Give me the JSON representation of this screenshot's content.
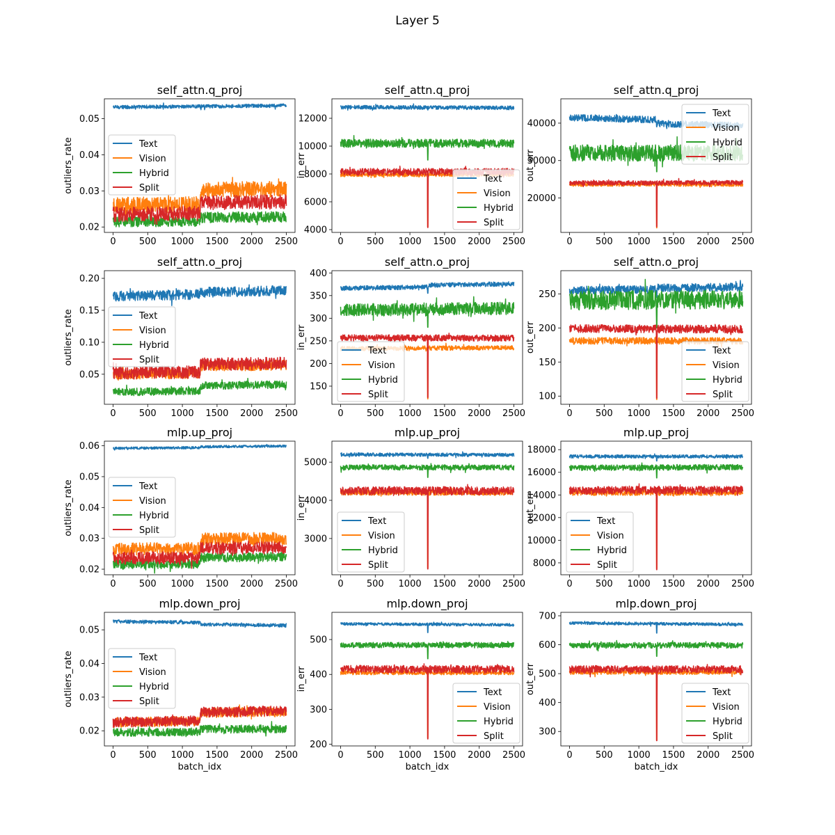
{
  "figure": {
    "title": "Layer 5"
  },
  "colors": {
    "Text": "#1f77b4",
    "Vision": "#ff7f0e",
    "Hybrid": "#2ca02c",
    "Split": "#d62728"
  },
  "chart_data": [
    {
      "type": "line",
      "title": "self_attn.q_proj",
      "xlabel": "",
      "ylabel": "outliers_rate",
      "xlim": [
        -125,
        2625
      ],
      "ylim": [
        0.0185,
        0.0555
      ],
      "xticks": [
        0,
        500,
        1000,
        1500,
        2000,
        2500
      ],
      "yticks": [
        0.02,
        0.03,
        0.04,
        0.05
      ],
      "ytick_labels": [
        "0.02",
        "0.03",
        "0.04",
        "0.05"
      ],
      "legend": "center-left",
      "x": [
        0,
        2500
      ],
      "series": [
        {
          "name": "Text",
          "mean": [
            0.0532,
            0.0536
          ],
          "noise": 0.0005,
          "step": 0
        },
        {
          "name": "Vision",
          "mean": [
            0.026,
            0.0265
          ],
          "noise": 0.0022,
          "step": 0.004
        },
        {
          "name": "Hybrid",
          "mean": [
            0.0215,
            0.0218
          ],
          "noise": 0.0015,
          "step": 0.001
        },
        {
          "name": "Split",
          "mean": [
            0.0235,
            0.024
          ],
          "noise": 0.002,
          "step": 0.003
        }
      ]
    },
    {
      "type": "line",
      "title": "self_attn.q_proj",
      "xlabel": "",
      "ylabel": "in_err",
      "xlim": [
        -125,
        2625
      ],
      "ylim": [
        3800,
        13400
      ],
      "xticks": [
        0,
        500,
        1000,
        1500,
        2000,
        2500
      ],
      "yticks": [
        4000,
        6000,
        8000,
        10000,
        12000
      ],
      "ytick_labels": [
        "4000",
        "6000",
        "8000",
        "10000",
        "12000"
      ],
      "legend": "lower-right",
      "x": [
        0,
        2500
      ],
      "series": [
        {
          "name": "Text",
          "mean": [
            12800,
            12750
          ],
          "noise": 140,
          "step": 0,
          "dip": 12600
        },
        {
          "name": "Vision",
          "mean": [
            7950,
            7950
          ],
          "noise": 150,
          "step": 0,
          "dip": 4200
        },
        {
          "name": "Hybrid",
          "mean": [
            10200,
            10200
          ],
          "noise": 300,
          "step": 0,
          "dip": 9000
        },
        {
          "name": "Split",
          "mean": [
            8150,
            8150
          ],
          "noise": 250,
          "step": 0,
          "dip": 4150
        }
      ]
    },
    {
      "type": "line",
      "title": "self_attn.q_proj",
      "xlabel": "",
      "ylabel": "out_err",
      "xlim": [
        -125,
        2625
      ],
      "ylim": [
        10800,
        46500
      ],
      "xticks": [
        0,
        500,
        1000,
        1500,
        2000,
        2500
      ],
      "yticks": [
        20000,
        30000,
        40000
      ],
      "ytick_labels": [
        "20000",
        "30000",
        "40000"
      ],
      "legend": "upper-right",
      "x": [
        0,
        2500
      ],
      "series": [
        {
          "name": "Text",
          "mean": [
            41500,
            40300
          ],
          "noise": 900,
          "step": -1000,
          "dip": 39000
        },
        {
          "name": "Vision",
          "mean": [
            23600,
            23600
          ],
          "noise": 500,
          "step": 0,
          "dip": 12000
        },
        {
          "name": "Hybrid",
          "mean": [
            32000,
            32000
          ],
          "noise": 2200,
          "step": 0,
          "dip": 27000
        },
        {
          "name": "Split",
          "mean": [
            24000,
            24100
          ],
          "noise": 600,
          "step": 0,
          "dip": 12300
        }
      ]
    },
    {
      "type": "line",
      "title": "self_attn.o_proj",
      "xlabel": "",
      "ylabel": "outliers_rate",
      "xlim": [
        -125,
        2625
      ],
      "ylim": [
        0.003,
        0.212
      ],
      "xticks": [
        0,
        500,
        1000,
        1500,
        2000,
        2500
      ],
      "yticks": [
        0.05,
        0.1,
        0.15,
        0.2
      ],
      "ytick_labels": [
        "0.05",
        "0.10",
        "0.15",
        "0.20"
      ],
      "legend": "center-left",
      "x": [
        0,
        2500
      ],
      "series": [
        {
          "name": "Text",
          "mean": [
            0.172,
            0.178
          ],
          "noise": 0.008,
          "step": 0.003
        },
        {
          "name": "Vision",
          "mean": [
            0.05,
            0.052
          ],
          "noise": 0.008,
          "step": 0.012
        },
        {
          "name": "Hybrid",
          "mean": [
            0.022,
            0.026
          ],
          "noise": 0.006,
          "step": 0.008
        },
        {
          "name": "Split",
          "mean": [
            0.052,
            0.055
          ],
          "noise": 0.01,
          "step": 0.012
        }
      ]
    },
    {
      "type": "line",
      "title": "self_attn.o_proj",
      "xlabel": "",
      "ylabel": "in_err",
      "xlim": [
        -125,
        2625
      ],
      "ylim": [
        110,
        405
      ],
      "xticks": [
        0,
        500,
        1000,
        1500,
        2000,
        2500
      ],
      "yticks": [
        150,
        200,
        250,
        300,
        350,
        400
      ],
      "ytick_labels": [
        "150",
        "200",
        "250",
        "300",
        "350",
        "400"
      ],
      "legend": "lower-left",
      "x": [
        0,
        2500
      ],
      "series": [
        {
          "name": "Text",
          "mean": [
            366,
            372
          ],
          "noise": 5,
          "step": 4,
          "dip": 355
        },
        {
          "name": "Vision",
          "mean": [
            233,
            235
          ],
          "noise": 5,
          "step": 0,
          "dip": 122
        },
        {
          "name": "Hybrid",
          "mean": [
            318,
            322
          ],
          "noise": 14,
          "step": 0,
          "dip": 280
        },
        {
          "name": "Split",
          "mean": [
            257,
            256
          ],
          "noise": 7,
          "step": 0,
          "dip": 125
        }
      ]
    },
    {
      "type": "line",
      "title": "self_attn.o_proj",
      "xlabel": "",
      "ylabel": "out_err",
      "xlim": [
        -125,
        2625
      ],
      "ylim": [
        88,
        284
      ],
      "xticks": [
        0,
        500,
        1000,
        1500,
        2000,
        2500
      ],
      "yticks": [
        100,
        150,
        200,
        250
      ],
      "ytick_labels": [
        "100",
        "150",
        "200",
        "250"
      ],
      "legend": "lower-right",
      "x": [
        0,
        2500
      ],
      "series": [
        {
          "name": "Text",
          "mean": [
            255,
            258
          ],
          "noise": 6,
          "step": 2,
          "dip": 245
        },
        {
          "name": "Vision",
          "mean": [
            181,
            181
          ],
          "noise": 5,
          "step": 0,
          "dip": 95
        },
        {
          "name": "Hybrid",
          "mean": [
            240,
            242
          ],
          "noise": 14,
          "step": 0,
          "dip": 200
        },
        {
          "name": "Split",
          "mean": [
            199,
            198
          ],
          "noise": 6,
          "step": 0,
          "dip": 97
        }
      ]
    },
    {
      "type": "line",
      "title": "mlp.up_proj",
      "xlabel": "",
      "ylabel": "outliers_rate",
      "xlim": [
        -125,
        2625
      ],
      "ylim": [
        0.0182,
        0.0615
      ],
      "xticks": [
        0,
        500,
        1000,
        1500,
        2000,
        2500
      ],
      "yticks": [
        0.02,
        0.03,
        0.04,
        0.05,
        0.06
      ],
      "ytick_labels": [
        "0.02",
        "0.03",
        "0.04",
        "0.05",
        "0.06"
      ],
      "legend": "center-left",
      "x": [
        0,
        2500
      ],
      "series": [
        {
          "name": "Text",
          "mean": [
            0.0592,
            0.0596
          ],
          "noise": 0.0004,
          "step": 0.0003
        },
        {
          "name": "Vision",
          "mean": [
            0.0265,
            0.027
          ],
          "noise": 0.002,
          "step": 0.003
        },
        {
          "name": "Hybrid",
          "mean": [
            0.0215,
            0.022
          ],
          "noise": 0.0015,
          "step": 0.002
        },
        {
          "name": "Split",
          "mean": [
            0.0235,
            0.024
          ],
          "noise": 0.002,
          "step": 0.003
        }
      ]
    },
    {
      "type": "line",
      "title": "mlp.up_proj",
      "xlabel": "",
      "ylabel": "in_err",
      "xlim": [
        -125,
        2625
      ],
      "ylim": [
        2050,
        5550
      ],
      "xticks": [
        0,
        500,
        1000,
        1500,
        2000,
        2500
      ],
      "yticks": [
        3000,
        4000,
        5000
      ],
      "ytick_labels": [
        "3000",
        "4000",
        "5000"
      ],
      "legend": "lower-left",
      "x": [
        0,
        2500
      ],
      "series": [
        {
          "name": "Text",
          "mean": [
            5200,
            5190
          ],
          "noise": 45,
          "step": 0,
          "dip": 5100
        },
        {
          "name": "Vision",
          "mean": [
            4200,
            4200
          ],
          "noise": 70,
          "step": 0,
          "dip": 2230
        },
        {
          "name": "Hybrid",
          "mean": [
            4860,
            4860
          ],
          "noise": 70,
          "step": 0,
          "dip": 4600
        },
        {
          "name": "Split",
          "mean": [
            4250,
            4250
          ],
          "noise": 110,
          "step": 0,
          "dip": 2200
        }
      ]
    },
    {
      "type": "line",
      "title": "mlp.up_proj",
      "xlabel": "",
      "ylabel": "out_err",
      "xlim": [
        -125,
        2625
      ],
      "ylim": [
        6950,
        18750
      ],
      "xticks": [
        0,
        500,
        1000,
        1500,
        2000,
        2500
      ],
      "yticks": [
        8000,
        10000,
        12000,
        14000,
        16000,
        18000
      ],
      "ytick_labels": [
        "8000",
        "10000",
        "12000",
        "14000",
        "16000",
        "18000"
      ],
      "legend": "lower-left",
      "x": [
        0,
        2500
      ],
      "series": [
        {
          "name": "Text",
          "mean": [
            17400,
            17400
          ],
          "noise": 150,
          "step": 0,
          "dip": 17000
        },
        {
          "name": "Vision",
          "mean": [
            14200,
            14200
          ],
          "noise": 250,
          "step": 0,
          "dip": 7500
        },
        {
          "name": "Hybrid",
          "mean": [
            16400,
            16450
          ],
          "noise": 250,
          "step": 0,
          "dip": 15500
        },
        {
          "name": "Split",
          "mean": [
            14400,
            14450
          ],
          "noise": 350,
          "step": 0,
          "dip": 7400
        }
      ]
    },
    {
      "type": "line",
      "title": "mlp.down_proj",
      "xlabel": "batch_idx",
      "ylabel": "outliers_rate",
      "xlim": [
        -125,
        2625
      ],
      "ylim": [
        0.0155,
        0.0552
      ],
      "xticks": [
        0,
        500,
        1000,
        1500,
        2000,
        2500
      ],
      "yticks": [
        0.02,
        0.03,
        0.04,
        0.05
      ],
      "ytick_labels": [
        "0.02",
        "0.03",
        "0.04",
        "0.05"
      ],
      "legend": "center-left",
      "x": [
        0,
        2500
      ],
      "series": [
        {
          "name": "Text",
          "mean": [
            0.0525,
            0.0518
          ],
          "noise": 0.0005,
          "step": -0.0005
        },
        {
          "name": "Vision",
          "mean": [
            0.0225,
            0.0232
          ],
          "noise": 0.0015,
          "step": 0.0025
        },
        {
          "name": "Hybrid",
          "mean": [
            0.0195,
            0.0198
          ],
          "noise": 0.0012,
          "step": 0.0008
        },
        {
          "name": "Split",
          "mean": [
            0.0225,
            0.0235
          ],
          "noise": 0.0015,
          "step": 0.0025
        }
      ]
    },
    {
      "type": "line",
      "title": "mlp.down_proj",
      "xlabel": "batch_idx",
      "ylabel": "in_err",
      "xlim": [
        -125,
        2625
      ],
      "ylim": [
        195,
        578
      ],
      "xticks": [
        0,
        500,
        1000,
        1500,
        2000,
        2500
      ],
      "yticks": [
        200,
        300,
        400,
        500
      ],
      "ytick_labels": [
        "200",
        "300",
        "400",
        "500"
      ],
      "legend": "lower-right",
      "x": [
        0,
        2500
      ],
      "series": [
        {
          "name": "Text",
          "mean": [
            545,
            542
          ],
          "noise": 4,
          "step": 0,
          "dip": 520
        },
        {
          "name": "Vision",
          "mean": [
            405,
            405
          ],
          "noise": 6,
          "step": 0,
          "dip": 218
        },
        {
          "name": "Hybrid",
          "mean": [
            484,
            484
          ],
          "noise": 8,
          "step": 0,
          "dip": 445
        },
        {
          "name": "Split",
          "mean": [
            415,
            415
          ],
          "noise": 11,
          "step": 0,
          "dip": 215
        }
      ]
    },
    {
      "type": "line",
      "title": "mlp.down_proj",
      "xlabel": "batch_idx",
      "ylabel": "out_err",
      "xlim": [
        -125,
        2625
      ],
      "ylim": [
        250,
        712
      ],
      "xticks": [
        0,
        500,
        1000,
        1500,
        2000,
        2500
      ],
      "yticks": [
        300,
        400,
        500,
        600,
        700
      ],
      "ytick_labels": [
        "300",
        "400",
        "500",
        "600",
        "700"
      ],
      "legend": "lower-right",
      "x": [
        0,
        2500
      ],
      "series": [
        {
          "name": "Text",
          "mean": [
            675,
            670
          ],
          "noise": 5,
          "step": 0,
          "dip": 640
        },
        {
          "name": "Vision",
          "mean": [
            505,
            505
          ],
          "noise": 8,
          "step": 0,
          "dip": 270
        },
        {
          "name": "Hybrid",
          "mean": [
            598,
            598
          ],
          "noise": 10,
          "step": 0,
          "dip": 560
        },
        {
          "name": "Split",
          "mean": [
            515,
            515
          ],
          "noise": 13,
          "step": 0,
          "dip": 268
        }
      ]
    }
  ]
}
